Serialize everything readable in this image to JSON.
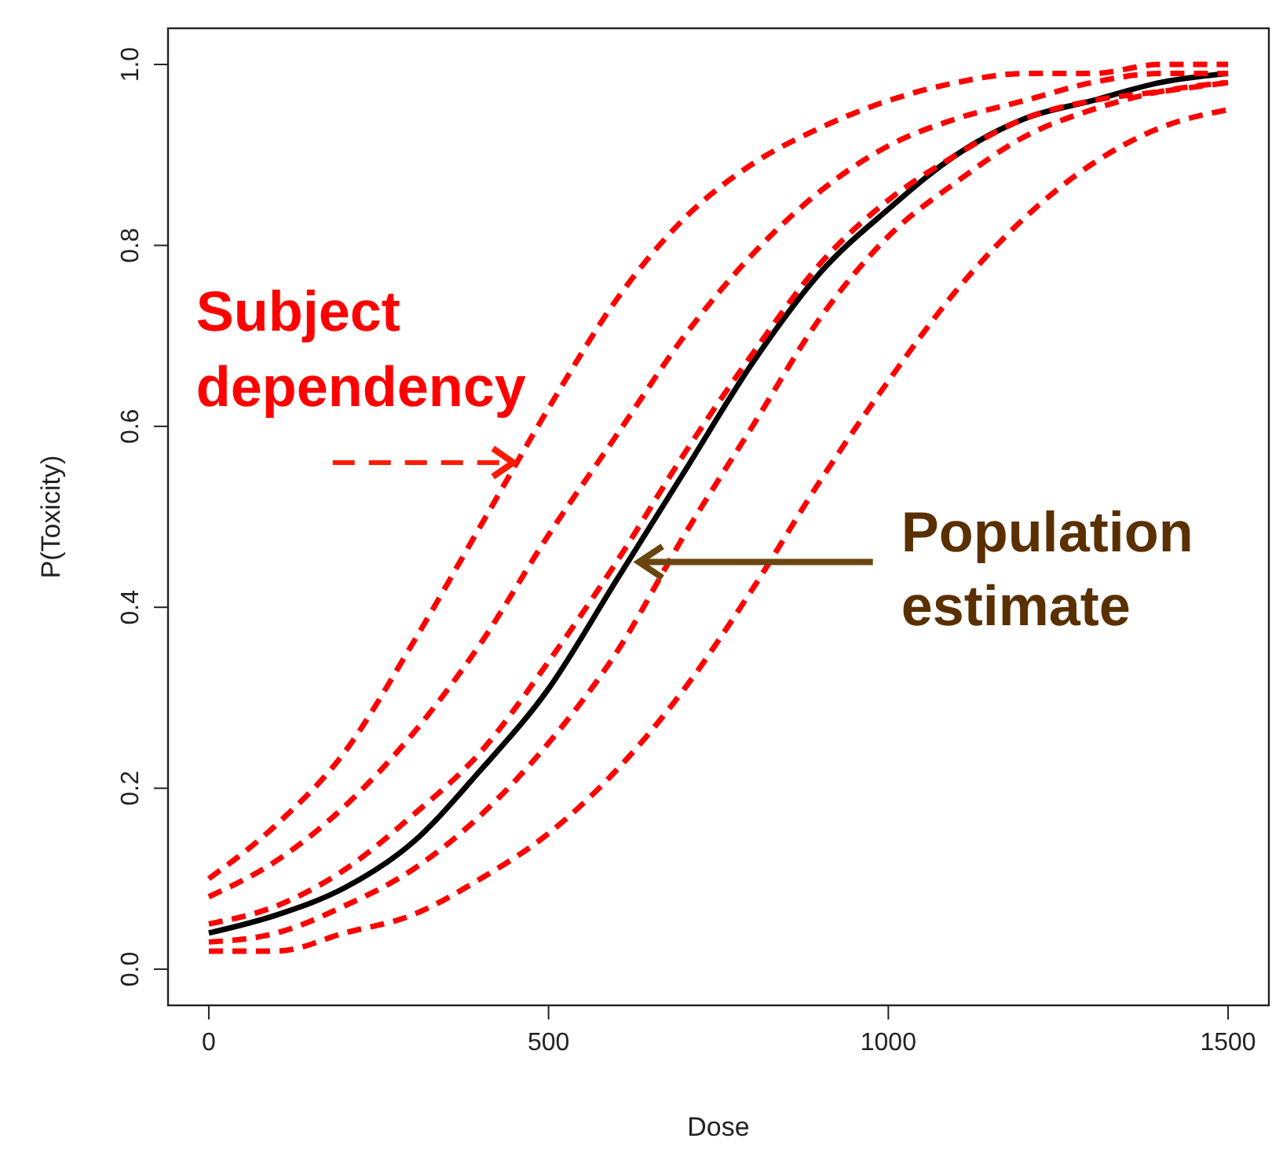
{
  "chart_data": {
    "type": "line",
    "xlabel": "Dose",
    "ylabel": "P(Toxicity)",
    "x": [
      0,
      100,
      200,
      300,
      400,
      500,
      600,
      700,
      800,
      900,
      1000,
      1100,
      1200,
      1300,
      1400,
      1500
    ],
    "series": [
      {
        "color": "#000000",
        "line_style": "solid",
        "values": [
          0.04,
          0.06,
          0.09,
          0.14,
          0.22,
          0.31,
          0.43,
          0.55,
          0.67,
          0.77,
          0.84,
          0.9,
          0.94,
          0.96,
          0.98,
          0.99
        ]
      },
      {
        "color": "#ff0000",
        "line_style": "dashed",
        "values": [
          0.1,
          0.16,
          0.24,
          0.36,
          0.49,
          0.62,
          0.74,
          0.83,
          0.89,
          0.93,
          0.96,
          0.98,
          0.99,
          0.99,
          1.0,
          1.0
        ]
      },
      {
        "color": "#ff0000",
        "line_style": "dashed",
        "values": [
          0.08,
          0.12,
          0.18,
          0.26,
          0.36,
          0.48,
          0.59,
          0.7,
          0.79,
          0.86,
          0.91,
          0.94,
          0.96,
          0.98,
          0.99,
          0.99
        ]
      },
      {
        "color": "#ff0000",
        "line_style": "dashed",
        "values": [
          0.05,
          0.07,
          0.11,
          0.17,
          0.24,
          0.34,
          0.45,
          0.57,
          0.68,
          0.78,
          0.85,
          0.9,
          0.94,
          0.96,
          0.97,
          0.98
        ]
      },
      {
        "color": "#ff0000",
        "line_style": "dashed",
        "values": [
          0.03,
          0.04,
          0.07,
          0.11,
          0.17,
          0.25,
          0.35,
          0.48,
          0.6,
          0.72,
          0.81,
          0.87,
          0.92,
          0.95,
          0.97,
          0.98
        ]
      },
      {
        "color": "#ff0000",
        "line_style": "dashed",
        "values": [
          0.02,
          0.02,
          0.04,
          0.06,
          0.1,
          0.15,
          0.22,
          0.31,
          0.42,
          0.54,
          0.65,
          0.75,
          0.83,
          0.89,
          0.93,
          0.95
        ]
      }
    ],
    "xlim": [
      -60,
      1560
    ],
    "xticks": [
      0,
      500,
      1000,
      1500
    ],
    "ylim": [
      -0.04,
      1.04
    ],
    "yticks": [
      {
        "value": 0,
        "label": "0.0"
      },
      0.2,
      0.4,
      0.6,
      0.8,
      {
        "value": 1,
        "label": "1.0"
      }
    ],
    "marker": "none",
    "annotations": [
      {
        "text": "Subject dependency",
        "x": 455,
        "y": 0.56
      },
      {
        "text": "Population estimate",
        "x": 626,
        "y": 0.45
      }
    ]
  }
}
